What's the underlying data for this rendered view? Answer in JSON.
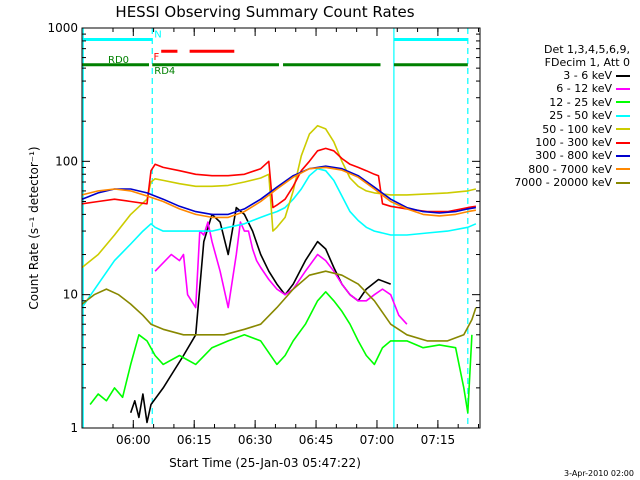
{
  "chart_data": {
    "type": "line",
    "title": "HESSI Observing Summary Count Rates",
    "xlabel": "Start Time (25-Jan-03 05:47:22)",
    "ylabel": "Count Rate (s⁻¹ detector⁻¹)",
    "yscale": "log",
    "ylim": [
      1,
      1000
    ],
    "xlim": [
      0,
      98
    ],
    "y_ticks": [
      {
        "value": 1,
        "label": "1"
      },
      {
        "value": 10,
        "label": "10"
      },
      {
        "value": 100,
        "label": "100"
      },
      {
        "value": 1000,
        "label": "1000"
      }
    ],
    "x_ticks": [
      {
        "value": 12.63,
        "label": "06:00"
      },
      {
        "value": 27.63,
        "label": "06:15"
      },
      {
        "value": 42.63,
        "label": "06:30"
      },
      {
        "value": 57.63,
        "label": "06:45"
      },
      {
        "value": 72.63,
        "label": "07:00"
      },
      {
        "value": 87.63,
        "label": "07:15"
      }
    ],
    "legend_header": [
      "Det 1,3,4,5,6,9,",
      "FDecim 1, Att 0"
    ],
    "legend_position": "right",
    "vlines": [
      {
        "x": 0.3,
        "color": "#00ffff",
        "style": "solid"
      },
      {
        "x": 17.3,
        "color": "#00ffff",
        "style": "dashed"
      },
      {
        "x": 76.8,
        "color": "#00ffff",
        "style": "solid"
      },
      {
        "x": 95.0,
        "color": "#00ffff",
        "style": "dashed"
      }
    ],
    "flag_bars": [
      {
        "label": "N",
        "color": "#00ffff",
        "y": 820,
        "segments": [
          [
            0,
            17.3
          ],
          [
            76.8,
            95.0
          ]
        ],
        "label_x": 17.8
      },
      {
        "label": "F",
        "color": "#ff0000",
        "y": 670,
        "segments": [
          [
            19.5,
            23.5
          ],
          [
            26.5,
            37.5
          ]
        ],
        "label_x": 17.6
      },
      {
        "label": "RD0",
        "color": "#008000",
        "y": 530,
        "segments": [
          [
            0,
            16.5
          ]
        ],
        "label_x": 9.0
      },
      {
        "label": "RD4",
        "color": "#008000",
        "y": 530,
        "segments": [
          [
            17.3,
            48.5
          ],
          [
            49.5,
            73.5
          ],
          [
            76.8,
            95.0
          ]
        ],
        "label_x": 17.8
      }
    ],
    "series": [
      {
        "name": "3 - 6 keV",
        "color": "#000000",
        "x": [
          12,
          13,
          14,
          15,
          16,
          17,
          20,
          25,
          28,
          30,
          32,
          34,
          36,
          38,
          40,
          42,
          44,
          46,
          48,
          50,
          52,
          55,
          58,
          60,
          62,
          64,
          66,
          68,
          70,
          73,
          76
        ],
        "y": [
          1.3,
          1.6,
          1.2,
          1.8,
          1.1,
          1.5,
          2.0,
          3.5,
          5.0,
          25,
          40,
          35,
          20,
          45,
          40,
          30,
          20,
          15,
          12,
          10,
          12,
          18,
          25,
          22,
          16,
          12,
          10,
          9,
          11,
          13,
          12
        ]
      },
      {
        "name": "6 - 12 keV",
        "color": "#ff00ff",
        "x": [
          18,
          22,
          24,
          25,
          26,
          28,
          29,
          30,
          31,
          32,
          34,
          36,
          38,
          39,
          40,
          41,
          42,
          43,
          44,
          46,
          48,
          50,
          52,
          55,
          58,
          60,
          62,
          64,
          66,
          68,
          70,
          72,
          74,
          76,
          78,
          80
        ],
        "y": [
          15,
          20,
          18,
          20,
          10,
          8,
          30,
          28,
          35,
          25,
          15,
          8,
          20,
          35,
          30,
          30,
          22,
          18,
          16,
          13,
          11,
          10,
          11,
          15,
          20,
          18,
          15,
          12,
          10,
          9,
          9,
          10,
          11,
          10,
          7,
          6
        ]
      },
      {
        "name": "12 - 25 keV",
        "color": "#00ff00",
        "x": [
          2,
          4,
          6,
          8,
          10,
          12,
          14,
          16,
          18,
          20,
          24,
          28,
          32,
          36,
          40,
          44,
          48,
          50,
          52,
          55,
          58,
          60,
          62,
          64,
          66,
          68,
          70,
          72,
          74,
          76,
          78,
          80,
          84,
          88,
          92,
          94,
          95,
          96
        ],
        "y": [
          1.5,
          1.8,
          1.6,
          2.0,
          1.7,
          3.0,
          5.0,
          4.5,
          3.5,
          3.0,
          3.5,
          3.0,
          4.0,
          4.5,
          5.0,
          4.5,
          3.0,
          3.5,
          4.5,
          6.0,
          9.0,
          10.5,
          9.0,
          7.5,
          6.0,
          4.5,
          3.5,
          3.0,
          4.0,
          4.5,
          4.5,
          4.5,
          4.0,
          4.2,
          4.0,
          2.0,
          1.3,
          5.0
        ]
      },
      {
        "name": "25 - 50 keV",
        "color": "#00ffff",
        "x": [
          0,
          4,
          8,
          12,
          15,
          17,
          18,
          20,
          24,
          28,
          32,
          36,
          40,
          42,
          44,
          46,
          48,
          50,
          52,
          54,
          56,
          58,
          60,
          62,
          64,
          66,
          68,
          70,
          72,
          74,
          76,
          80,
          85,
          90,
          95,
          97
        ],
        "y": [
          8.0,
          12,
          18,
          24,
          30,
          34,
          32,
          30,
          30,
          30,
          30,
          32,
          34,
          36,
          38,
          40,
          42,
          45,
          52,
          62,
          78,
          88,
          85,
          72,
          55,
          42,
          36,
          32,
          30,
          29,
          28,
          28,
          29,
          30,
          32,
          34
        ]
      },
      {
        "name": "50 - 100 keV",
        "color": "#cccc00",
        "x": [
          0,
          4,
          8,
          12,
          16,
          17,
          18,
          20,
          24,
          28,
          32,
          36,
          40,
          44,
          46,
          47,
          48,
          50,
          52,
          54,
          56,
          58,
          60,
          62,
          64,
          66,
          68,
          70,
          72,
          74,
          76,
          80,
          85,
          90,
          95,
          97
        ],
        "y": [
          16,
          20,
          28,
          40,
          52,
          70,
          74,
          72,
          68,
          65,
          65,
          66,
          70,
          75,
          80,
          30,
          32,
          38,
          60,
          110,
          160,
          185,
          175,
          140,
          100,
          75,
          65,
          60,
          58,
          57,
          56,
          56,
          57,
          58,
          60,
          62
        ]
      },
      {
        "name": "100 - 300 keV",
        "color": "#ff0000",
        "x": [
          0,
          4,
          8,
          12,
          16,
          17,
          18,
          20,
          24,
          28,
          32,
          36,
          40,
          44,
          46,
          47,
          48,
          50,
          52,
          54,
          56,
          58,
          60,
          62,
          64,
          66,
          68,
          70,
          72,
          73,
          74,
          76,
          80,
          85,
          90,
          95,
          97
        ],
        "y": [
          48,
          50,
          52,
          50,
          48,
          85,
          95,
          90,
          85,
          80,
          78,
          78,
          80,
          88,
          100,
          45,
          47,
          52,
          65,
          85,
          100,
          120,
          125,
          120,
          105,
          95,
          90,
          85,
          80,
          78,
          48,
          46,
          44,
          42,
          42,
          45,
          46
        ]
      },
      {
        "name": "300 - 800 keV",
        "color": "#0000cc",
        "x": [
          0,
          4,
          8,
          12,
          16,
          20,
          24,
          28,
          32,
          36,
          40,
          44,
          48,
          52,
          56,
          60,
          64,
          68,
          72,
          76,
          80,
          84,
          88,
          92,
          95,
          97
        ],
        "y": [
          52,
          58,
          62,
          62,
          58,
          52,
          46,
          42,
          40,
          40,
          44,
          52,
          64,
          78,
          88,
          92,
          88,
          78,
          64,
          52,
          45,
          42,
          41,
          42,
          44,
          45
        ]
      },
      {
        "name": "800 - 7000 keV",
        "color": "#ff8800",
        "x": [
          0,
          4,
          8,
          12,
          16,
          20,
          24,
          28,
          32,
          36,
          40,
          44,
          48,
          52,
          56,
          60,
          64,
          68,
          72,
          76,
          80,
          84,
          88,
          92,
          95,
          97
        ],
        "y": [
          56,
          60,
          62,
          60,
          55,
          50,
          44,
          40,
          38,
          38,
          42,
          50,
          62,
          76,
          88,
          90,
          86,
          76,
          62,
          50,
          44,
          40,
          39,
          40,
          42,
          43
        ]
      },
      {
        "name": "7000 - 20000 keV",
        "color": "#888800",
        "x": [
          0,
          3,
          6,
          9,
          12,
          15,
          17,
          20,
          25,
          30,
          35,
          40,
          44,
          48,
          52,
          56,
          60,
          64,
          68,
          72,
          76,
          80,
          85,
          90,
          94,
          96,
          97
        ],
        "y": [
          8.5,
          10,
          11,
          10,
          8.5,
          7.0,
          6.0,
          5.5,
          5.0,
          5.0,
          5.0,
          5.5,
          6.0,
          8.0,
          11,
          14,
          15,
          14,
          12,
          9.0,
          6.0,
          5.0,
          4.5,
          4.5,
          5.0,
          6.5,
          8.0
        ]
      }
    ]
  },
  "footer_date": "3-Apr-2010 02:00"
}
